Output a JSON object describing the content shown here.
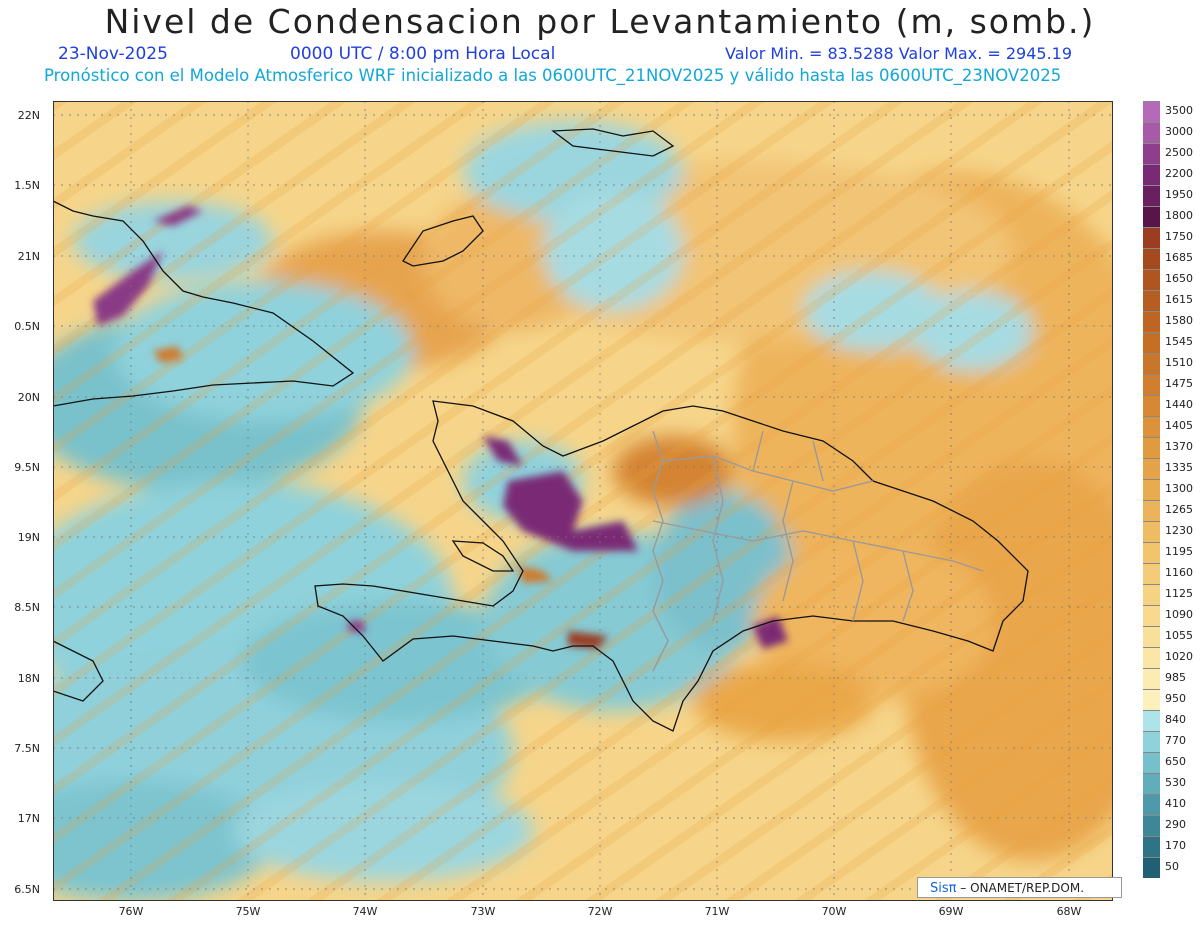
{
  "title": "Nivel de Condensacion por Levantamiento (m, somb.)",
  "date": "23-Nov-2025",
  "time": "0000 UTC / 8:00 pm Hora Local",
  "minmax": "Valor Min. = 83.5288   Valor Max. = 2945.19",
  "model_line": "Pronóstico con el Modelo Atmosferico WRF inicializado a las 0600UTC_21NOV2025 y válido hasta las  0600UTC_23NOV2025",
  "credit_brand": "Sisπ",
  "credit_rest": "– ONAMET/REP.DOM.",
  "lat_labels": [
    "22N",
    "1.5N",
    "21N",
    "0.5N",
    "20N",
    "9.5N",
    "19N",
    "8.5N",
    "18N",
    "7.5N",
    "17N",
    "6.5N"
  ],
  "lon_labels": [
    "76W",
    "75W",
    "74W",
    "73W",
    "72W",
    "71W",
    "70W",
    "69W",
    "68W"
  ],
  "colorbar": {
    "labels": [
      "3500",
      "3000",
      "2500",
      "2200",
      "1950",
      "1800",
      "1750",
      "1685",
      "1650",
      "1615",
      "1580",
      "1545",
      "1510",
      "1475",
      "1440",
      "1405",
      "1370",
      "1335",
      "1300",
      "1265",
      "1230",
      "1195",
      "1160",
      "1125",
      "1090",
      "1055",
      "1020",
      "985",
      "950",
      "840",
      "770",
      "650",
      "530",
      "410",
      "290",
      "170",
      "50"
    ],
    "colors": [
      "#b46ab8",
      "#a65aa8",
      "#8f3e8e",
      "#7a2a75",
      "#6a1f60",
      "#581648",
      "#9a3d20",
      "#a44a1e",
      "#ae5520",
      "#b65e22",
      "#bd6624",
      "#c46e26",
      "#ca762a",
      "#d17f2e",
      "#d78834",
      "#dc913a",
      "#e09a40",
      "#e4a348",
      "#e8ab50",
      "#ecb45a",
      "#efbc64",
      "#f2c46e",
      "#f4cb78",
      "#f6d283",
      "#f8d98e",
      "#f9e09a",
      "#fae6a6",
      "#fbecb2",
      "#fcf1bd",
      "#aee3ea",
      "#8fd2dc",
      "#76c0cc",
      "#62adbb",
      "#4f9aaa",
      "#3e8798",
      "#2f7486",
      "#216074"
    ]
  }
}
